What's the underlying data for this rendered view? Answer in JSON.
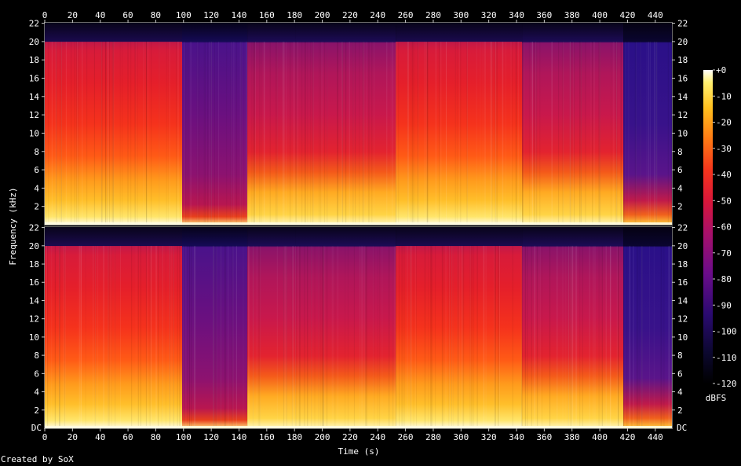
{
  "chart_data": {
    "type": "heatmap",
    "subtype": "spectrogram",
    "channels": 2,
    "xlabel": "Time (s)",
    "ylabel": "Frequency (kHz)",
    "xlim": [
      0,
      452
    ],
    "ylim_khz": [
      0,
      22.05
    ],
    "x_ticks": [
      "0",
      "20",
      "40",
      "60",
      "80",
      "100",
      "120",
      "140",
      "160",
      "180",
      "200",
      "220",
      "240",
      "260",
      "280",
      "300",
      "320",
      "340",
      "360",
      "380",
      "400",
      "420",
      "440"
    ],
    "y_ticks": [
      "2",
      "4",
      "6",
      "8",
      "10",
      "12",
      "14",
      "16",
      "18",
      "20",
      "22"
    ],
    "y_bottom_label": "DC",
    "colorbar": {
      "label": "dBFS",
      "range": [
        -120,
        0
      ],
      "ticks": [
        "+0",
        "-10",
        "-20",
        "-30",
        "-40",
        "-50",
        "-60",
        "-70",
        "-80",
        "-90",
        "-100",
        "-110",
        "-120"
      ]
    },
    "cutoff_khz": 20,
    "segments": [
      {
        "start": 0,
        "end": 99,
        "level": "high"
      },
      {
        "start": 99,
        "end": 146,
        "level": "low"
      },
      {
        "start": 146,
        "end": 181,
        "level": "medium"
      },
      {
        "start": 181,
        "end": 253,
        "level": "medium"
      },
      {
        "start": 253,
        "end": 344,
        "level": "high"
      },
      {
        "start": 344,
        "end": 417,
        "level": "medium"
      },
      {
        "start": 417,
        "end": 452,
        "level": "quiet"
      }
    ],
    "credit": "Created by SoX"
  }
}
